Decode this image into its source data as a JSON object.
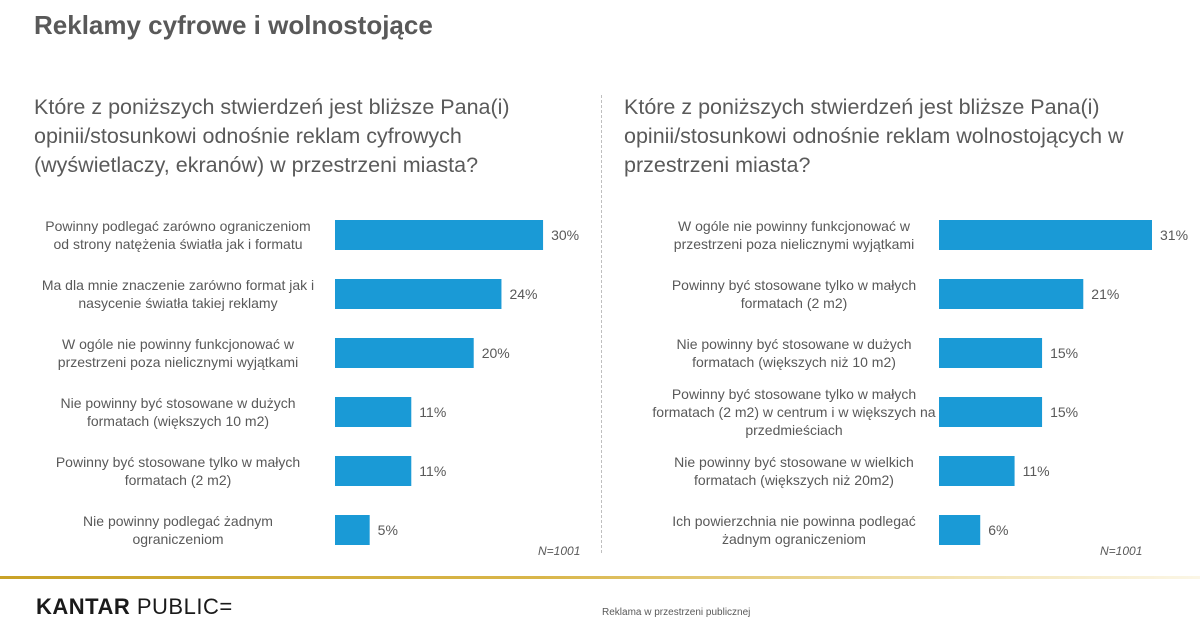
{
  "slide": {
    "title": "Reklamy cyfrowe i wolnostojące",
    "footer_text": "Reklama w przestrzeni publicznej",
    "logo_brand": "KANTAR",
    "logo_sub": "PUBLIC=",
    "accent_color": "#1a9ad6",
    "rule_color": "#c9a227"
  },
  "chart_data": [
    {
      "type": "bar",
      "orientation": "horizontal",
      "title": "Które z poniższych stwierdzeń jest bliższe Pana(i) opinii/stosunkowi odnośnie reklam cyfrowych (wyświetlaczy, ekranów) w przestrzeni miasta?",
      "categories": [
        [
          "Powinny podlegać zarówno ograniczeniom",
          "od strony natężenia światła jak i formatu"
        ],
        [
          "Ma dla mnie znaczenie zarówno format jak i",
          "nasycenie światła takiej reklamy"
        ],
        [
          "W ogóle nie powinny funkcjonować w",
          "przestrzeni poza nielicznymi wyjątkami"
        ],
        [
          "Nie powinny być stosowane w dużych",
          "formatach (większych 10 m2)"
        ],
        [
          "Powinny być stosowane tylko w małych",
          "formatach (2 m2)"
        ],
        [
          "Nie powinny podlegać żadnym",
          "ograniczeniom"
        ]
      ],
      "values": [
        30,
        24,
        20,
        11,
        11,
        5
      ],
      "value_labels": [
        "30%",
        "24%",
        "20%",
        "11%",
        "11%",
        "5%"
      ],
      "unit": "%",
      "xlim": [
        0,
        31
      ],
      "sample_note": "N=1001",
      "color": "#1a9ad6"
    },
    {
      "type": "bar",
      "orientation": "horizontal",
      "title": "Które z poniższych stwierdzeń jest bliższe Pana(i) opinii/stosunkowi odnośnie reklam wolnostojących w przestrzeni miasta?",
      "categories": [
        [
          "W ogóle nie powinny funkcjonować w",
          "przestrzeni poza nielicznymi wyjątkami"
        ],
        [
          "Powinny być stosowane tylko w małych",
          "formatach (2 m2)"
        ],
        [
          "Nie powinny być stosowane w dużych",
          "formatach (większych niż 10 m2)"
        ],
        [
          "Powinny być stosowane tylko w małych",
          "formatach (2 m2) w centrum i w większych na",
          "przedmieściach"
        ],
        [
          "Nie powinny być stosowane w wielkich",
          "formatach (większych niż 20m2)"
        ],
        [
          "Ich powierzchnia nie powinna podlegać",
          "żadnym ograniczeniom"
        ]
      ],
      "values": [
        31,
        21,
        15,
        15,
        11,
        6
      ],
      "value_labels": [
        "31%",
        "21%",
        "15%",
        "15%",
        "11%",
        "6%"
      ],
      "unit": "%",
      "xlim": [
        0,
        31
      ],
      "sample_note": "N=1001",
      "color": "#1a9ad6"
    }
  ]
}
